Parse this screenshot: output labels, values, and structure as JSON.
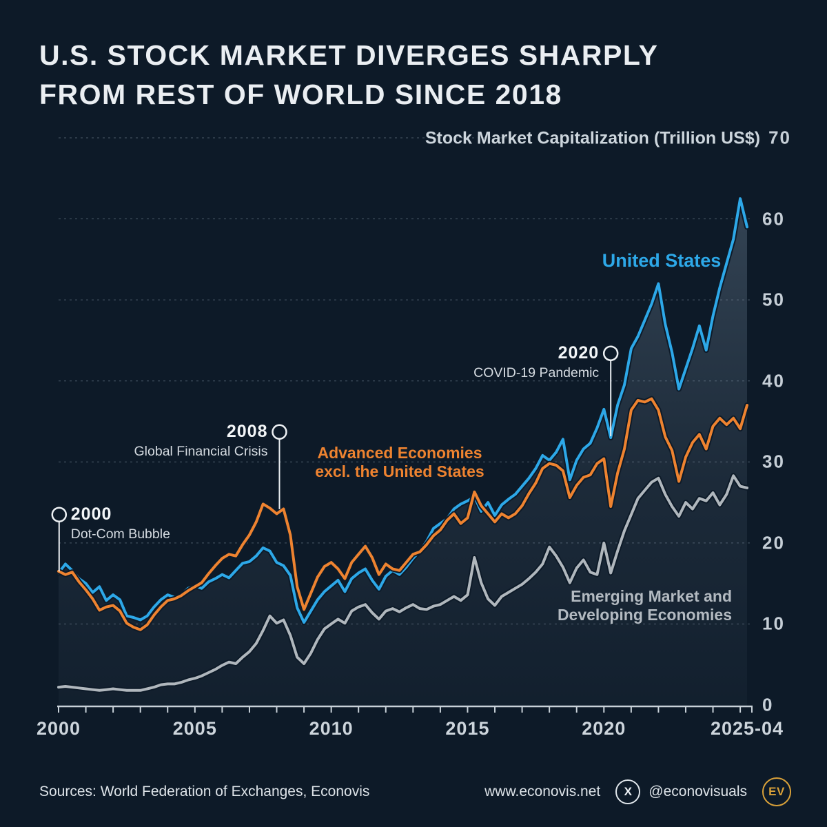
{
  "title": {
    "line1": "U.S. STOCK MARKET DIVERGES SHARPLY",
    "line2": "FROM REST OF WORLD SINCE 2018"
  },
  "colors": {
    "background": "#0d1a28",
    "us_blue": "#2da8e8",
    "advanced_orange": "#ee8330",
    "emerging_gray": "#b0b7bd",
    "grid": "#9fb0bf",
    "axis": "#c9d2d9",
    "gold": "#d9a139"
  },
  "chart_data": {
    "type": "line",
    "title": "U.S. STOCK MARKET DIVERGES SHARPLY FROM REST OF WORLD SINCE 2018",
    "y_axis_label": "Stock Market Capitalization (Trillion US$)",
    "y_axis_top_value": "70",
    "ylim": [
      0,
      70
    ],
    "y_ticks": [
      0,
      10,
      20,
      30,
      40,
      50,
      60
    ],
    "x_tick_labels": [
      "2000",
      "2005",
      "2010",
      "2015",
      "2020",
      "2025-04"
    ],
    "x_tick_years": [
      2000,
      2005,
      2010,
      2015,
      2020,
      2025.25
    ],
    "x_start": 2000,
    "x_step": 0.25,
    "x_end": 2025.25,
    "grid": "dashed horizontal, legend as inline labels",
    "series": [
      {
        "name": "Emerging Market and Developing Economies",
        "color": "#b0b7bd",
        "area_fill": false,
        "values": [
          2.2,
          2.3,
          2.2,
          2.1,
          2.0,
          1.9,
          1.8,
          1.9,
          2.0,
          1.9,
          1.8,
          1.8,
          1.8,
          2.0,
          2.2,
          2.5,
          2.6,
          2.6,
          2.8,
          3.1,
          3.3,
          3.6,
          4.0,
          4.4,
          4.9,
          5.3,
          5.1,
          5.9,
          6.6,
          7.6,
          9.2,
          11.0,
          10.1,
          10.5,
          8.6,
          5.9,
          5.1,
          6.4,
          8.1,
          9.4,
          10.0,
          10.6,
          10.1,
          11.6,
          12.1,
          12.4,
          11.4,
          10.6,
          11.6,
          11.9,
          11.5,
          12.0,
          12.4,
          11.9,
          11.8,
          12.2,
          12.4,
          12.9,
          13.4,
          12.9,
          13.6,
          18.2,
          15.1,
          13.1,
          12.3,
          13.4,
          13.9,
          14.4,
          14.9,
          15.6,
          16.4,
          17.4,
          19.5,
          18.4,
          17.0,
          15.1,
          16.9,
          17.9,
          16.4,
          16.1,
          20.0,
          16.3,
          19.0,
          21.5,
          23.5,
          25.5,
          26.5,
          27.5,
          28.0,
          26.0,
          24.5,
          23.3,
          25.0,
          24.2,
          25.5,
          25.2,
          26.2,
          24.7,
          26.0,
          28.3,
          27.0,
          26.8
        ]
      },
      {
        "name": "United States",
        "color": "#2da8e8",
        "area_fill": true,
        "values": [
          16.3,
          17.4,
          16.6,
          15.6,
          15.0,
          13.9,
          14.6,
          12.9,
          13.6,
          13.0,
          11.0,
          10.8,
          10.5,
          11.0,
          12.1,
          13.0,
          13.6,
          13.3,
          13.6,
          14.4,
          14.7,
          14.4,
          15.2,
          15.6,
          16.1,
          15.7,
          16.6,
          17.5,
          17.7,
          18.4,
          19.4,
          19.0,
          17.6,
          17.2,
          16.0,
          12.0,
          10.2,
          11.6,
          13.0,
          14.0,
          14.7,
          15.4,
          14.0,
          15.6,
          16.3,
          16.8,
          15.4,
          14.3,
          15.9,
          16.6,
          16.1,
          17.0,
          18.1,
          19.0,
          20.2,
          21.8,
          22.4,
          23.0,
          24.2,
          24.8,
          25.2,
          25.7,
          23.9,
          25.0,
          23.4,
          24.7,
          25.4,
          26.0,
          27.0,
          28.0,
          29.2,
          30.8,
          30.2,
          31.2,
          32.8,
          27.8,
          30.2,
          31.6,
          32.3,
          34.2,
          36.5,
          33.0,
          37.0,
          39.5,
          44.0,
          45.5,
          47.5,
          49.5,
          52.0,
          47.0,
          43.5,
          39.0,
          41.5,
          44.0,
          46.8,
          43.8,
          48.0,
          51.5,
          54.5,
          57.5,
          62.5,
          59.0
        ]
      },
      {
        "name": "Advanced Economies excl. the United States",
        "color": "#ee8330",
        "area_fill": false,
        "values": [
          16.5,
          16.1,
          16.4,
          15.2,
          14.2,
          13.1,
          11.7,
          12.1,
          12.3,
          11.6,
          10.1,
          9.6,
          9.3,
          9.9,
          11.1,
          12.1,
          12.9,
          13.1,
          13.5,
          14.1,
          14.6,
          15.1,
          16.2,
          17.2,
          18.1,
          18.6,
          18.4,
          19.8,
          21.0,
          22.6,
          24.8,
          24.3,
          23.6,
          24.2,
          21.0,
          14.6,
          11.8,
          13.8,
          15.8,
          17.1,
          17.6,
          16.8,
          15.6,
          17.6,
          18.6,
          19.6,
          18.2,
          16.1,
          17.4,
          16.8,
          16.6,
          17.6,
          18.6,
          18.9,
          19.8,
          20.9,
          21.6,
          22.8,
          23.6,
          22.4,
          23.1,
          26.3,
          24.6,
          23.6,
          22.6,
          23.6,
          23.1,
          23.6,
          24.6,
          26.1,
          27.4,
          29.2,
          29.8,
          29.6,
          28.9,
          25.6,
          27.1,
          28.1,
          28.4,
          29.8,
          30.4,
          24.5,
          28.6,
          31.6,
          36.4,
          37.6,
          37.4,
          37.8,
          36.4,
          33.1,
          31.4,
          27.6,
          30.6,
          32.4,
          33.4,
          31.6,
          34.4,
          35.4,
          34.6,
          35.4,
          34.1,
          37.0
        ]
      }
    ],
    "annotations": [
      {
        "year_label": "2000",
        "event": "Dot-Com Bubble",
        "at_year": 2000.02,
        "circle_value": 23.5,
        "point_value": 16.3,
        "text_side": "right"
      },
      {
        "year_label": "2008",
        "event": "Global Financial Crisis",
        "at_year": 2008.1,
        "circle_value": 33.7,
        "point_value": 24.0,
        "text_side": "left"
      },
      {
        "year_label": "2020",
        "event": "COVID-19 Pandemic",
        "at_year": 2020.25,
        "circle_value": 43.4,
        "point_value": 33.0,
        "text_side": "left"
      }
    ]
  },
  "series_labels": {
    "us": "United States",
    "advanced_line1": "Advanced Economies",
    "advanced_line2": "excl. the United States",
    "emerging_line1": "Emerging Market and",
    "emerging_line2": "Developing Economies"
  },
  "footer": {
    "sources": "Sources: World Federation of Exchanges, Econovis",
    "website": "www.econovis.net",
    "x_icon_label": "X",
    "handle": "@econovisuals",
    "logo_text": "EV"
  }
}
